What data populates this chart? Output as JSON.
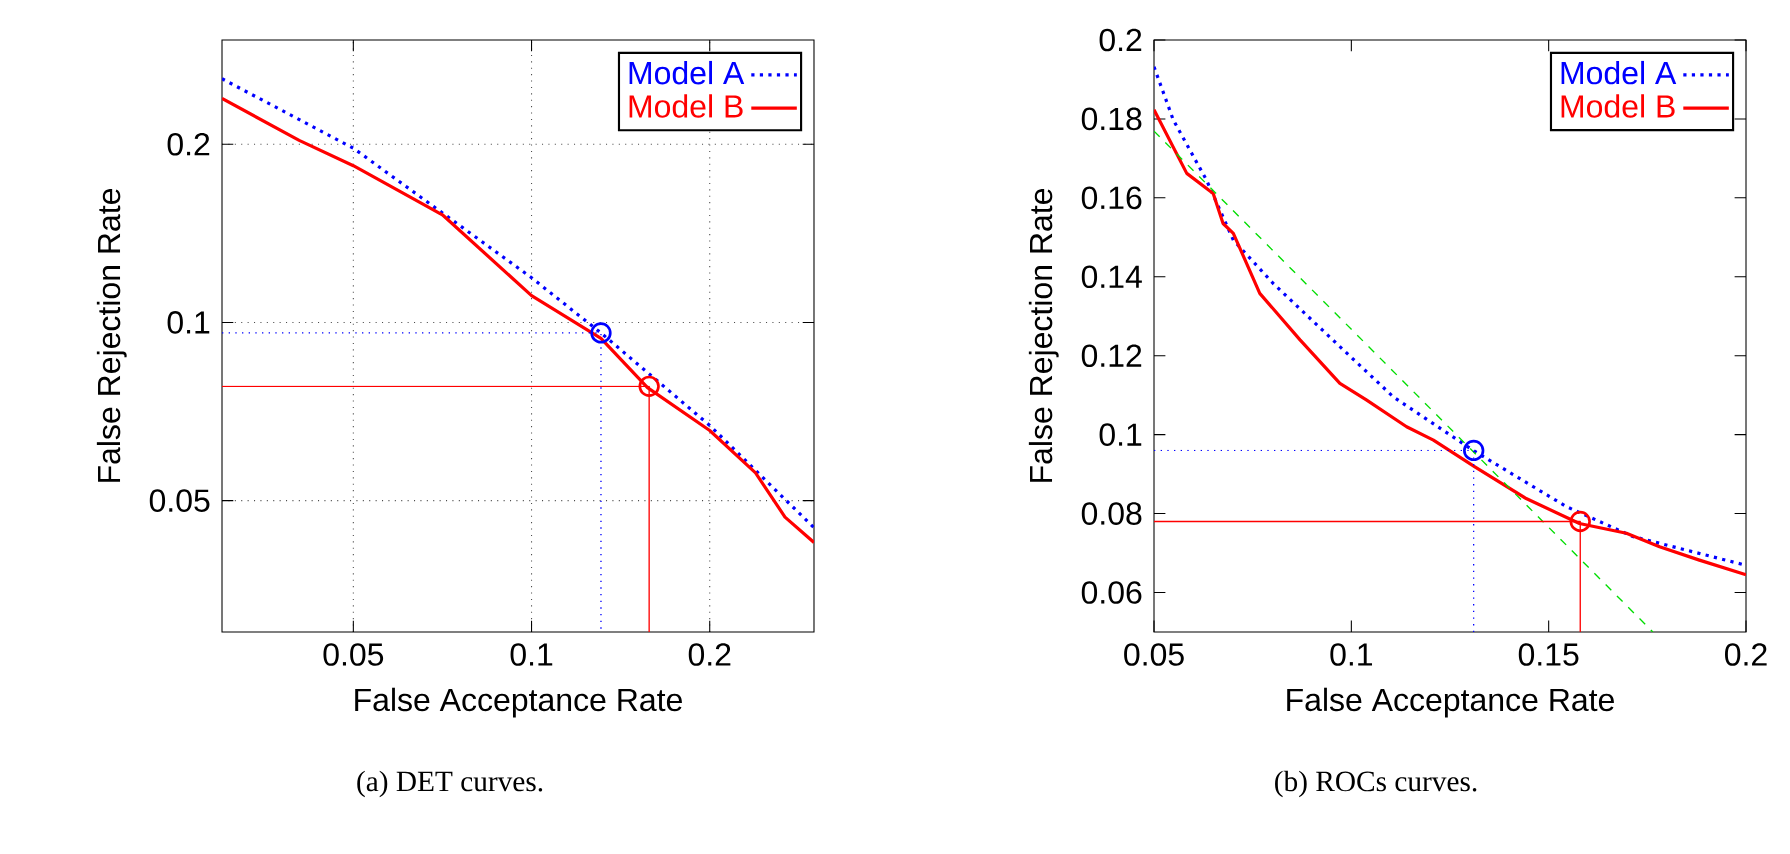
{
  "chart_data": [
    {
      "type": "line",
      "xlabel": "False Acceptance Rate",
      "ylabel": "False Rejection Rate",
      "annotations": [
        "(a) DET curves."
      ],
      "log": "xy",
      "grid": true,
      "legend": "top right",
      "xlim": [
        0.03,
        0.3
      ],
      "ylim": [
        0.03,
        0.3
      ],
      "xticks": [
        0.05,
        0.1,
        0.2
      ],
      "yticks": [
        0.05,
        0.1,
        0.2
      ],
      "series": [
        {
          "name": "Model A",
          "color": "#0000ff",
          "line_style": "dotted",
          "x": [
            0.03,
            0.05,
            0.1,
            0.131,
            0.2,
            0.3
          ],
          "values": [
            0.258,
            0.197,
            0.119,
            0.096,
            0.067,
            0.045
          ]
        },
        {
          "name": "Model B",
          "color": "#ff0000",
          "line_style": "solid",
          "x": [
            0.03,
            0.0405,
            0.05,
            0.0707,
            0.1,
            0.131,
            0.157,
            0.2,
            0.239,
            0.268,
            0.3
          ],
          "values": [
            0.239,
            0.203,
            0.184,
            0.152,
            0.111,
            0.094,
            0.0776,
            0.0657,
            0.0557,
            0.0469,
            0.0425
          ]
        },
        {
          "color": "#0000ff",
          "line_style": "dotted",
          "x": [
            0.03,
            0.131,
            0.131
          ],
          "values": [
            0.096,
            0.096,
            0.03
          ]
        },
        {
          "color": "#ff0000",
          "line_style": "solid",
          "x": [
            0.03,
            0.158,
            0.158
          ],
          "values": [
            0.078,
            0.078,
            0.03
          ]
        },
        {
          "type": "scatter",
          "marker": "circle",
          "color": "#0000ff",
          "x": [
            0.131
          ],
          "values": [
            0.096
          ]
        },
        {
          "type": "scatter",
          "marker": "circle",
          "color": "#ff0000",
          "x": [
            0.158
          ],
          "values": [
            0.078
          ]
        }
      ]
    },
    {
      "type": "line",
      "xlabel": "False Acceptance Rate",
      "ylabel": "False Rejection Rate",
      "annotations": [
        "(b) ROCs curves."
      ],
      "legend": "top right",
      "xlim": [
        0.05,
        0.2
      ],
      "ylim": [
        0.05,
        0.2
      ],
      "xticks": [
        0.05,
        0.1,
        0.15,
        0.2
      ],
      "yticks": [
        0.06,
        0.08,
        0.1,
        0.12,
        0.14,
        0.16,
        0.18,
        0.2
      ],
      "series": [
        {
          "name": "Model A",
          "color": "#0000ff",
          "line_style": "dotted",
          "x": [
            0.05,
            0.0549,
            0.0633,
            0.0701,
            0.0802,
            0.0971,
            0.1106,
            0.1312,
            0.1544,
            0.1713,
            0.2
          ],
          "values": [
            0.1932,
            0.1797,
            0.1645,
            0.1493,
            0.1383,
            0.1223,
            0.1096,
            0.0958,
            0.0818,
            0.0742,
            0.0669
          ]
        },
        {
          "name": "Model B",
          "color": "#ff0000",
          "line_style": "solid",
          "x": [
            0.05,
            0.0583,
            0.065,
            0.0675,
            0.0701,
            0.0768,
            0.087,
            0.0971,
            0.1038,
            0.114,
            0.1208,
            0.1312,
            0.1443,
            0.1578,
            0.1697,
            0.1781,
            0.1882,
            0.2
          ],
          "values": [
            0.1823,
            0.1662,
            0.1611,
            0.1535,
            0.151,
            0.1358,
            0.124,
            0.113,
            0.1088,
            0.102,
            0.0986,
            0.0919,
            0.0838,
            0.0775,
            0.075,
            0.0716,
            0.0682,
            0.0645
          ]
        },
        {
          "color": "#00dd00",
          "line_style": "dashed",
          "x": [
            0.05,
            0.1764
          ],
          "values": [
            0.1769,
            0.05
          ]
        },
        {
          "color": "#0000ff",
          "line_style": "dotted",
          "x": [
            0.05,
            0.131,
            0.131
          ],
          "values": [
            0.096,
            0.096,
            0.05
          ]
        },
        {
          "color": "#ff0000",
          "line_style": "solid",
          "x": [
            0.05,
            0.158,
            0.158
          ],
          "values": [
            0.078,
            0.078,
            0.05
          ]
        },
        {
          "type": "scatter",
          "marker": "circle",
          "color": "#0000ff",
          "x": [
            0.131
          ],
          "values": [
            0.096
          ]
        },
        {
          "type": "scatter",
          "marker": "circle",
          "color": "#ff0000",
          "x": [
            0.158
          ],
          "values": [
            0.078
          ]
        }
      ]
    }
  ]
}
